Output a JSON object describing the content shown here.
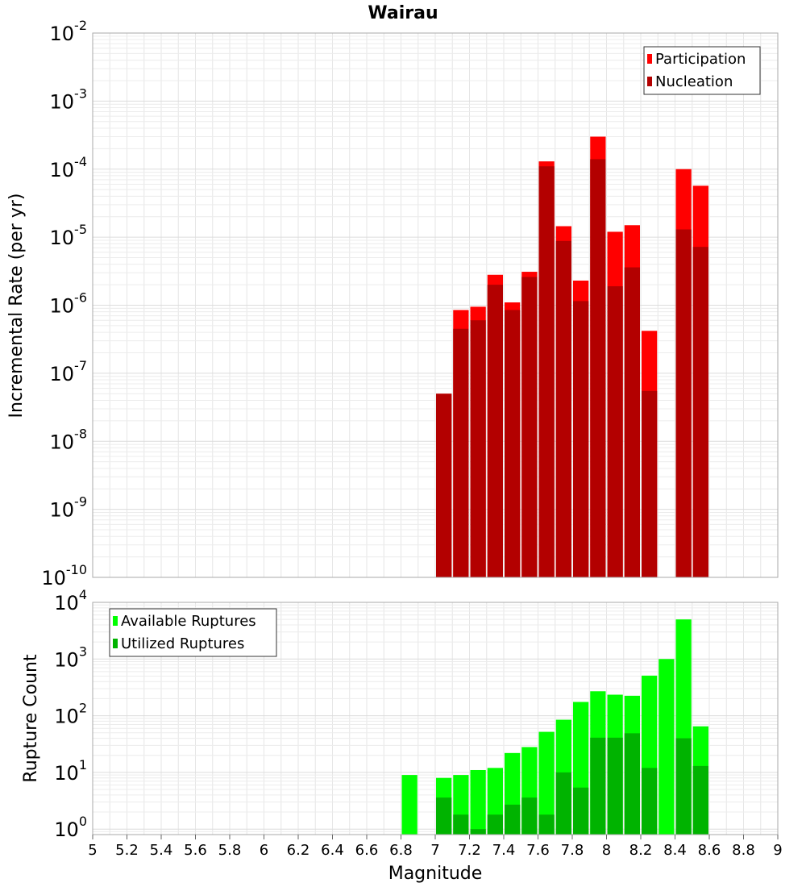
{
  "chart_data": [
    {
      "type": "bar",
      "title": "Wairau",
      "ylabel": "Incremental Rate (per yr)",
      "yscale": "log",
      "ylim": [
        1e-10,
        0.01
      ],
      "xlim": [
        5,
        9
      ],
      "grid": true,
      "legend_position": "top-right",
      "x": [
        7.05,
        7.15,
        7.25,
        7.35,
        7.45,
        7.55,
        7.65,
        7.75,
        7.85,
        7.95,
        8.05,
        8.15,
        8.25,
        8.35,
        8.45,
        8.55
      ],
      "series": [
        {
          "name": "Participation",
          "color": "#ff0000",
          "values": [
            5e-08,
            8.5e-07,
            9.5e-07,
            2.8e-06,
            1.1e-06,
            3.1e-06,
            0.00013,
            1.45e-05,
            2.3e-06,
            0.0003,
            1.2e-05,
            1.5e-05,
            4.2e-07,
            null,
            0.0001,
            5.7e-05
          ]
        },
        {
          "name": "Nucleation",
          "color": "#b30000",
          "values": [
            5e-08,
            4.5e-07,
            6e-07,
            2e-06,
            8.5e-07,
            2.6e-06,
            0.00011,
            8.8e-06,
            1.15e-06,
            0.00014,
            1.9e-06,
            3.6e-06,
            5.5e-08,
            null,
            1.3e-05,
            7.2e-06
          ]
        }
      ]
    },
    {
      "type": "bar",
      "xlabel": "Magnitude",
      "ylabel": "Rupture Count",
      "yscale": "log",
      "ylim": [
        0.8,
        10000
      ],
      "xlim": [
        5,
        9
      ],
      "grid": true,
      "legend_position": "top-left",
      "x": [
        6.85,
        7.05,
        7.15,
        7.25,
        7.35,
        7.45,
        7.55,
        7.65,
        7.75,
        7.85,
        7.95,
        8.05,
        8.15,
        8.25,
        8.35,
        8.45,
        8.55
      ],
      "series": [
        {
          "name": "Available Ruptures",
          "color": "#00ff00",
          "values": [
            9,
            8,
            9,
            11,
            12,
            22,
            28,
            52,
            85,
            175,
            270,
            235,
            225,
            510,
            1000,
            5000,
            65
          ]
        },
        {
          "name": "Utilized Ruptures",
          "color": "#00b300",
          "values": [
            null,
            3.6,
            1.8,
            1,
            1.8,
            2.7,
            3.6,
            1.8,
            10,
            5.4,
            41,
            41,
            49,
            12,
            null,
            40,
            13
          ]
        }
      ]
    }
  ],
  "ticks": {
    "x": [
      "5",
      "5.2",
      "5.4",
      "5.6",
      "5.8",
      "6",
      "6.2",
      "6.4",
      "6.6",
      "6.8",
      "7",
      "7.2",
      "7.4",
      "7.6",
      "7.8",
      "8",
      "8.2",
      "8.4",
      "8.6",
      "8.8",
      "9"
    ],
    "top_y_exponents": [
      "-2",
      "-3",
      "-4",
      "-5",
      "-6",
      "-7",
      "-8",
      "-9",
      "-10"
    ],
    "bottom_y_exponents": [
      "4",
      "3",
      "2",
      "1",
      "0"
    ],
    "base": "10"
  },
  "legend_top": [
    "Participation",
    "Nucleation"
  ],
  "legend_bottom": [
    "Available Ruptures",
    "Utilized Ruptures"
  ]
}
